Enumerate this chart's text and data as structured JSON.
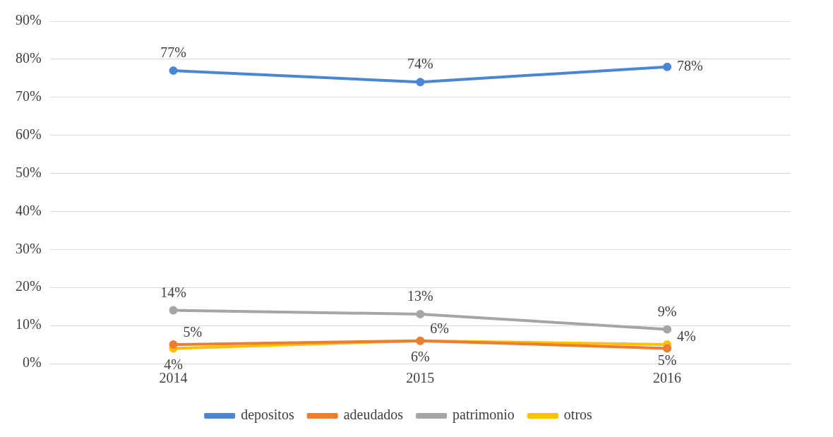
{
  "chart_data": {
    "type": "line",
    "categories": [
      "2014",
      "2015",
      "2016"
    ],
    "series": [
      {
        "name": "depositos",
        "color": "#4a86d4",
        "values": [
          77,
          74,
          78
        ],
        "value_labels": [
          "77%",
          "74%",
          "78%"
        ]
      },
      {
        "name": "adeudados",
        "color": "#ed7d31",
        "values": [
          5,
          6,
          4
        ],
        "value_labels": [
          "5%",
          "6%",
          "4%"
        ]
      },
      {
        "name": "patrimonio",
        "color": "#a5a5a5",
        "values": [
          14,
          13,
          9
        ],
        "value_labels": [
          "14%",
          "13%",
          "9%"
        ]
      },
      {
        "name": "otros",
        "color": "#ffc000",
        "values": [
          4,
          6,
          5
        ],
        "value_labels": [
          "4%",
          "6%",
          "5%"
        ]
      }
    ],
    "ylim": [
      0,
      90
    ],
    "yticks": [
      {
        "value": 0,
        "label": "0%"
      },
      {
        "value": 10,
        "label": "10%"
      },
      {
        "value": 20,
        "label": "20%"
      },
      {
        "value": 30,
        "label": "30%"
      },
      {
        "value": 40,
        "label": "40%"
      },
      {
        "value": 50,
        "label": "50%"
      },
      {
        "value": 60,
        "label": "60%"
      },
      {
        "value": 70,
        "label": "70%"
      },
      {
        "value": 80,
        "label": "80%"
      },
      {
        "value": 90,
        "label": "90%"
      }
    ],
    "grid": "y",
    "legend": "bottom",
    "marker": "circle",
    "line_style": "solid"
  }
}
